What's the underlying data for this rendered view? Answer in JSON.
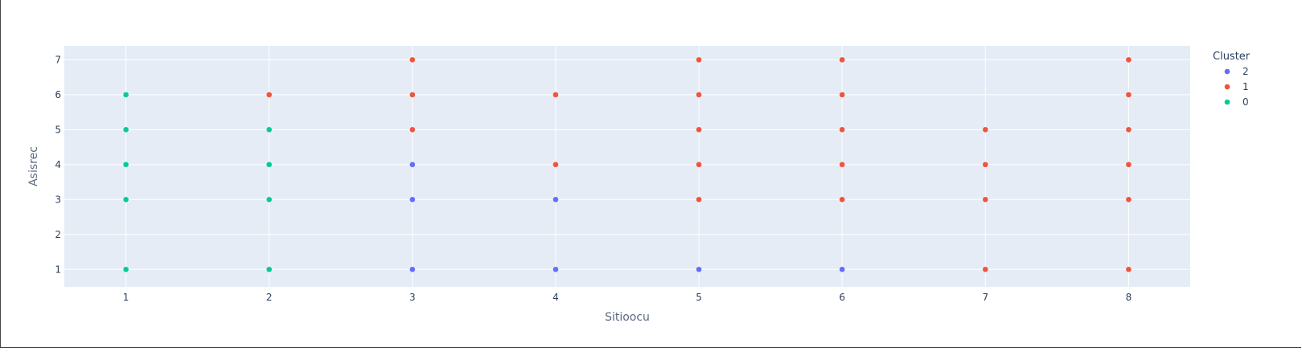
{
  "chart_data": {
    "type": "scatter",
    "title": "",
    "xlabel": "Sitioocu",
    "ylabel": "Asisrec",
    "x_ticks": [
      1,
      2,
      3,
      4,
      5,
      6,
      7,
      8
    ],
    "y_ticks": [
      1,
      2,
      3,
      4,
      5,
      6,
      7
    ],
    "xlim": [
      0.57,
      8.43
    ],
    "ylim": [
      0.5,
      7.4
    ],
    "grid": true,
    "legend_title": "Cluster",
    "legend_position": "right",
    "series": [
      {
        "name": "2",
        "color": "#636efa",
        "points": [
          [
            3,
            4
          ],
          [
            3,
            3
          ],
          [
            3,
            1
          ],
          [
            4,
            3
          ],
          [
            4,
            1
          ],
          [
            5,
            1
          ],
          [
            6,
            1
          ]
        ]
      },
      {
        "name": "1",
        "color": "#EF553B",
        "points": [
          [
            2,
            6
          ],
          [
            3,
            7
          ],
          [
            3,
            6
          ],
          [
            3,
            5
          ],
          [
            4,
            6
          ],
          [
            4,
            4
          ],
          [
            5,
            7
          ],
          [
            5,
            6
          ],
          [
            5,
            5
          ],
          [
            5,
            4
          ],
          [
            5,
            3
          ],
          [
            6,
            7
          ],
          [
            6,
            6
          ],
          [
            6,
            5
          ],
          [
            6,
            4
          ],
          [
            6,
            3
          ],
          [
            7,
            5
          ],
          [
            7,
            4
          ],
          [
            7,
            3
          ],
          [
            7,
            1
          ],
          [
            8,
            7
          ],
          [
            8,
            6
          ],
          [
            8,
            5
          ],
          [
            8,
            4
          ],
          [
            8,
            3
          ],
          [
            8,
            1
          ]
        ]
      },
      {
        "name": "0",
        "color": "#00cc96",
        "points": [
          [
            1,
            6
          ],
          [
            1,
            5
          ],
          [
            1,
            4
          ],
          [
            1,
            3
          ],
          [
            1,
            1
          ],
          [
            2,
            5
          ],
          [
            2,
            4
          ],
          [
            2,
            3
          ],
          [
            2,
            1
          ]
        ]
      }
    ]
  },
  "colors": {
    "plot_background": "#E5ECF6",
    "grid": "#ffffff",
    "text": "#2a3f5f"
  }
}
